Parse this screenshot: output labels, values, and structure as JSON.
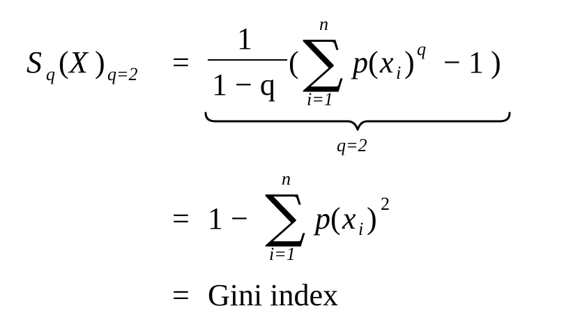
{
  "line1": {
    "S": "S",
    "sub_q": "q",
    "lparen": "(",
    "X": "X",
    "rparen": ")",
    "sub_q_eq_2": "q=2",
    "equals": "=",
    "frac_num": "1",
    "frac_den": "1 − q",
    "open_paren": "(",
    "sum_upper": "n",
    "sum_symbol": "∑",
    "sum_lower": "i=1",
    "p": "p",
    "p_lparen": "(",
    "x": "x",
    "x_sub": "i",
    "p_rparen": ")",
    "pow_q": "q",
    "minus_one": "− 1",
    "close_paren": ")",
    "underbrace_label": "q=2"
  },
  "line2": {
    "equals": "=",
    "one_minus": "1 −",
    "sum_upper": "n",
    "sum_symbol": "∑",
    "sum_lower": "i=1",
    "p": "p",
    "p_lparen": "(",
    "x": "x",
    "x_sub": "i",
    "p_rparen": ")",
    "pow_two": "2"
  },
  "line3": {
    "equals": "=",
    "text": "Gini index"
  }
}
